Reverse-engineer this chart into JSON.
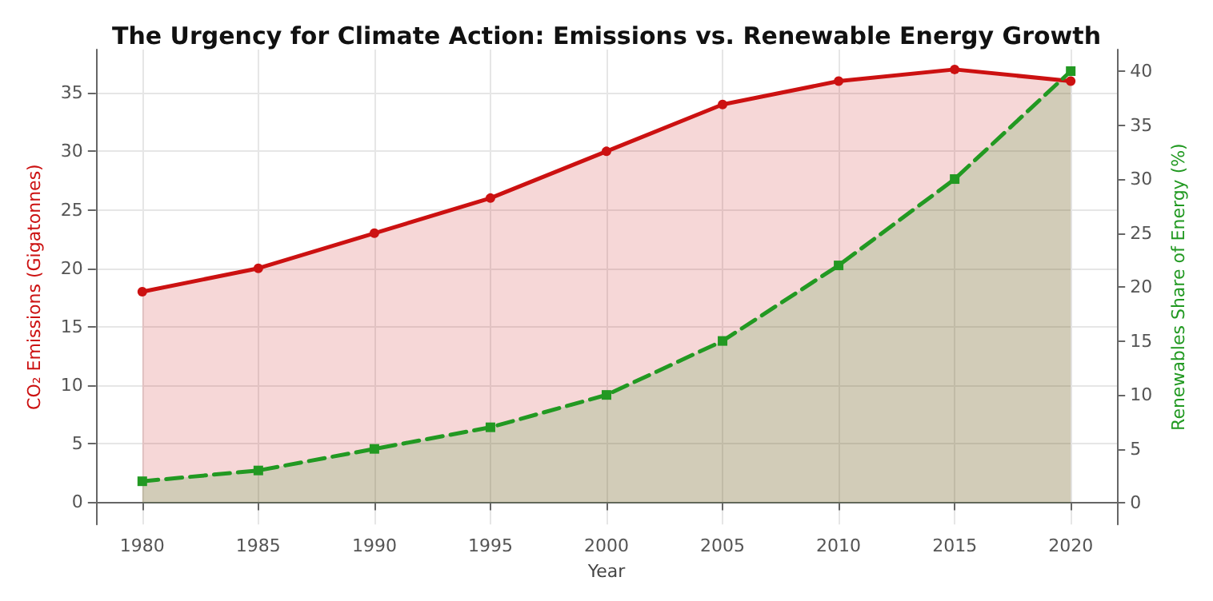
{
  "chart_data": {
    "type": "area",
    "title": "The Urgency for Climate Action: Emissions vs. Renewable Energy Growth",
    "xlabel": "Year",
    "ylabel": "CO₂ Emissions (Gigatonnes)",
    "y2label": "Renewables Share of Energy (%)",
    "x": [
      1980,
      1985,
      1990,
      1995,
      2000,
      2005,
      2010,
      2015,
      2020
    ],
    "series": [
      {
        "color": "#cc1111",
        "marker": "circle",
        "line_style": "solid",
        "values": [
          18,
          20,
          23,
          26,
          30,
          34,
          36,
          37,
          36
        ]
      },
      {
        "axis": "y2",
        "color": "#229922",
        "marker": "square",
        "line_style": "dashed",
        "values": [
          2,
          3,
          5,
          7,
          10,
          15,
          22,
          30,
          40
        ]
      }
    ],
    "xlim": [
      1978,
      2022
    ],
    "xticks": [
      1980,
      1985,
      1990,
      1995,
      2000,
      2005,
      2010,
      2015,
      2020
    ],
    "ylim": [
      -1.9,
      38.7
    ],
    "yticks": [
      0,
      5,
      10,
      15,
      20,
      25,
      30,
      35
    ],
    "y2lim": [
      -2,
      42
    ],
    "y2ticks": [
      0,
      5,
      10,
      15,
      20,
      25,
      30,
      35,
      40
    ],
    "grid": true
  }
}
